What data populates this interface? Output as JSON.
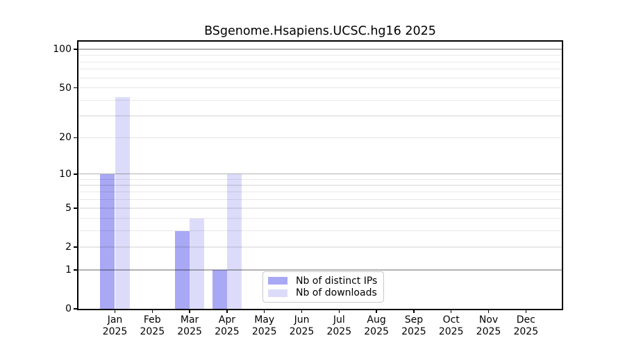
{
  "chart_data": {
    "type": "bar",
    "title": "BSgenome.Hsapiens.UCSC.hg16 2025",
    "categories": [
      "Jan 2025",
      "Feb 2025",
      "Mar 2025",
      "Apr 2025",
      "May 2025",
      "Jun 2025",
      "Jul 2025",
      "Aug 2025",
      "Sep 2025",
      "Oct 2025",
      "Nov 2025",
      "Dec 2025"
    ],
    "months": [
      {
        "month": "Jan",
        "year": "2025"
      },
      {
        "month": "Feb",
        "year": "2025"
      },
      {
        "month": "Mar",
        "year": "2025"
      },
      {
        "month": "Apr",
        "year": "2025"
      },
      {
        "month": "May",
        "year": "2025"
      },
      {
        "month": "Jun",
        "year": "2025"
      },
      {
        "month": "Jul",
        "year": "2025"
      },
      {
        "month": "Aug",
        "year": "2025"
      },
      {
        "month": "Sep",
        "year": "2025"
      },
      {
        "month": "Oct",
        "year": "2025"
      },
      {
        "month": "Nov",
        "year": "2025"
      },
      {
        "month": "Dec",
        "year": "2025"
      }
    ],
    "series": [
      {
        "name": "Nb of distinct IPs",
        "color": "#a8a8f4",
        "values": [
          10,
          0,
          3,
          1,
          0,
          0,
          0,
          0,
          0,
          0,
          0,
          0
        ]
      },
      {
        "name": "Nb of downloads",
        "color": "#dcdcfa",
        "values": [
          42,
          0,
          4,
          10,
          0,
          0,
          0,
          0,
          0,
          0,
          0,
          0
        ]
      }
    ],
    "y_axis": {
      "scale": "log1p",
      "ticks": [
        0,
        1,
        2,
        5,
        10,
        20,
        50,
        100
      ],
      "max": 115,
      "minor_gridlines": [
        2,
        3,
        4,
        5,
        6,
        7,
        8,
        9,
        20,
        30,
        40,
        50,
        60,
        70,
        80,
        90
      ],
      "major_gridlines": [
        1,
        10,
        100
      ]
    },
    "xlabel": "",
    "ylabel": "",
    "grid": true,
    "legend": {
      "position": "bottom-center",
      "entries": [
        "Nb of distinct IPs",
        "Nb of downloads"
      ]
    }
  }
}
